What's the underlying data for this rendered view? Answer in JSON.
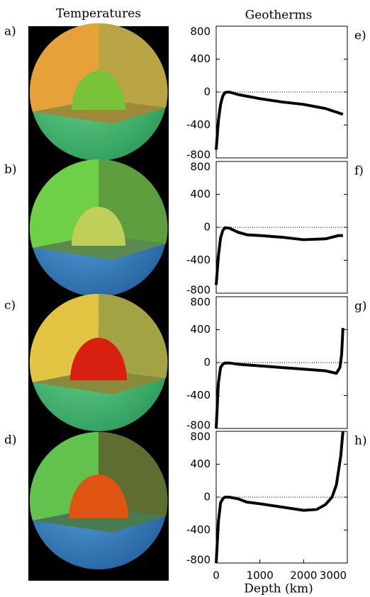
{
  "column_titles": [
    "Temperatures",
    "Geotherms"
  ],
  "panel_labels": [
    "a)",
    "b)",
    "c)",
    "d)"
  ],
  "chart_data": [
    {
      "type": "line",
      "label": "e)",
      "xlim": [
        0,
        3000
      ],
      "ylim": [
        -800,
        800
      ],
      "yticks": [
        -800,
        -400,
        0,
        400,
        800
      ],
      "color": "#000000",
      "x": [
        0,
        50,
        100,
        150,
        200,
        300,
        500,
        1000,
        1500,
        2000,
        2500,
        2900
      ],
      "values": [
        -700,
        -350,
        -150,
        -50,
        -5,
        0,
        -30,
        -80,
        -120,
        -150,
        -200,
        -270
      ]
    },
    {
      "type": "line",
      "label": "f)",
      "xlim": [
        0,
        3000
      ],
      "ylim": [
        -800,
        800
      ],
      "yticks": [
        -800,
        -400,
        0,
        400,
        800
      ],
      "color": "#000000",
      "x": [
        0,
        50,
        100,
        150,
        200,
        300,
        500,
        700,
        1000,
        1500,
        2000,
        2500,
        2800,
        2900
      ],
      "values": [
        -700,
        -350,
        -130,
        -40,
        -5,
        -10,
        -60,
        -90,
        -100,
        -120,
        -150,
        -140,
        -100,
        -100
      ]
    },
    {
      "type": "line",
      "label": "g)",
      "xlim": [
        0,
        3000
      ],
      "ylim": [
        -800,
        800
      ],
      "yticks": [
        -800,
        -400,
        0,
        400,
        800
      ],
      "color": "#000000",
      "x": [
        0,
        50,
        100,
        150,
        200,
        300,
        500,
        1000,
        1500,
        2000,
        2500,
        2750,
        2830,
        2870,
        2900
      ],
      "values": [
        -800,
        -250,
        -60,
        -20,
        -5,
        -5,
        -20,
        -40,
        -60,
        -80,
        -100,
        -130,
        -60,
        100,
        420
      ]
    },
    {
      "type": "line",
      "label": "h)",
      "xlim": [
        0,
        3000
      ],
      "ylim": [
        -800,
        800
      ],
      "yticks": [
        -800,
        -400,
        0,
        400,
        800
      ],
      "xticks": [
        0,
        1000,
        2000,
        3000
      ],
      "xlabel": "Depth (km)",
      "color": "#000000",
      "x": [
        0,
        50,
        100,
        150,
        200,
        300,
        500,
        700,
        1000,
        1500,
        2000,
        2300,
        2500,
        2650,
        2750,
        2850,
        2900
      ],
      "values": [
        -800,
        -300,
        -70,
        -20,
        0,
        0,
        -20,
        -60,
        -80,
        -120,
        -160,
        -150,
        -90,
        0,
        150,
        500,
        800
      ]
    }
  ]
}
